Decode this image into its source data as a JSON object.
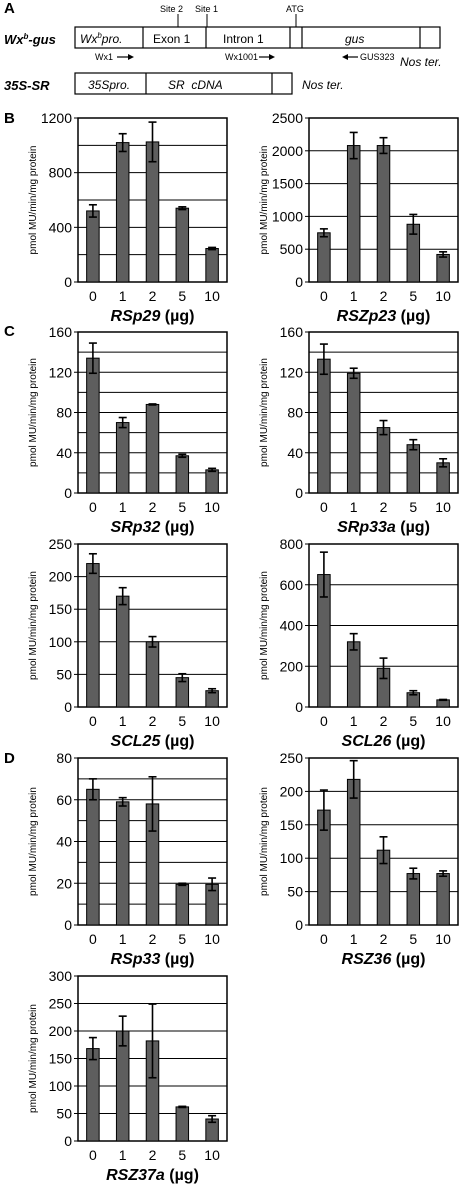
{
  "panels": {
    "a": "A",
    "b": "B",
    "c": "C",
    "d": "D"
  },
  "diagram": {
    "construct1": {
      "label_main": "Wx",
      "label_sup": "b",
      "label_tail": "-gus",
      "segments": {
        "promoter_main": "Wx",
        "promoter_sup": "b",
        "promoter_tail": "pro.",
        "exon1": "Exon 1",
        "intron1": "Intron 1",
        "gus": "gus"
      },
      "terminator": "Nos ter."
    },
    "sites": {
      "site2": "Site 2",
      "site1": "Site 1",
      "atg": "ATG"
    },
    "primers": {
      "wx1": "Wx1",
      "wx1001": "Wx1001",
      "gus323": "GUS323"
    },
    "construct2": {
      "label": "35S-SR",
      "segments": {
        "promoter": "35Spro.",
        "cdna": "SR  cDNA"
      },
      "terminator": "Nos ter."
    }
  },
  "chart_data": [
    {
      "id": "rsp29",
      "type": "bar",
      "ylabel": "pmol MU/min/mg protein",
      "xlabel_gene": "RSp29",
      "xlabel_unit": "(µg)",
      "categories": [
        "0",
        "1",
        "2",
        "5",
        "10"
      ],
      "values": [
        520,
        1020,
        1025,
        540,
        245
      ],
      "errors": [
        45,
        65,
        145,
        10,
        8
      ],
      "ylim": [
        0,
        1200
      ],
      "yticks": [
        "0",
        "400",
        "800",
        "1200"
      ],
      "gridlines": [
        0,
        200,
        400,
        600,
        800,
        1000,
        1200
      ]
    },
    {
      "id": "rszp23",
      "type": "bar",
      "ylabel": "pmol MU/min/mg protein",
      "xlabel_gene": "RSZp23",
      "xlabel_unit": "(µg)",
      "categories": [
        "0",
        "1",
        "2",
        "5",
        "10"
      ],
      "values": [
        750,
        2080,
        2080,
        880,
        420
      ],
      "errors": [
        60,
        200,
        120,
        150,
        40
      ],
      "ylim": [
        0,
        2500
      ],
      "yticks": [
        "0",
        "500",
        "1000",
        "1500",
        "2000",
        "2500"
      ],
      "gridlines": [
        0,
        500,
        1000,
        1500,
        2000,
        2500
      ]
    },
    {
      "id": "srp32",
      "type": "bar",
      "ylabel": "pmol MU/min/mg protein",
      "xlabel_gene": "SRp32",
      "xlabel_unit": "(µg)",
      "categories": [
        "0",
        "1",
        "2",
        "5",
        "10"
      ],
      "values": [
        134,
        70,
        88,
        37,
        23
      ],
      "errors": [
        15,
        5,
        0.5,
        1.5,
        1.5
      ],
      "ylim": [
        0,
        160
      ],
      "yticks": [
        "0",
        "40",
        "80",
        "120",
        "160"
      ],
      "gridlines": [
        0,
        20,
        40,
        60,
        80,
        100,
        120,
        140,
        160
      ]
    },
    {
      "id": "srp33a",
      "type": "bar",
      "ylabel": "pmol MU/min/mg protein",
      "xlabel_gene": "SRp33a",
      "xlabel_unit": "(µg)",
      "categories": [
        "0",
        "1",
        "2",
        "5",
        "10"
      ],
      "values": [
        133,
        119,
        65,
        48,
        30
      ],
      "errors": [
        15,
        5,
        7,
        5,
        4
      ],
      "ylim": [
        0,
        160
      ],
      "yticks": [
        "0",
        "40",
        "80",
        "120",
        "160"
      ],
      "gridlines": [
        0,
        20,
        40,
        60,
        80,
        100,
        120,
        140,
        160
      ]
    },
    {
      "id": "scl25",
      "type": "bar",
      "ylabel": "pmol MU/min/mg protein",
      "xlabel_gene": "SCL25",
      "xlabel_unit": "(µg)",
      "categories": [
        "0",
        "1",
        "2",
        "5",
        "10"
      ],
      "values": [
        220,
        170,
        100,
        45,
        25
      ],
      "errors": [
        15,
        13,
        8,
        6,
        3
      ],
      "ylim": [
        0,
        250
      ],
      "yticks": [
        "0",
        "50",
        "100",
        "150",
        "200",
        "250"
      ],
      "gridlines": [
        0,
        50,
        100,
        150,
        200,
        250
      ]
    },
    {
      "id": "scl26",
      "type": "bar",
      "ylabel": "pmol MU/min/mg protein",
      "xlabel_gene": "SCL26",
      "xlabel_unit": "(µg)",
      "categories": [
        "0",
        "1",
        "2",
        "5",
        "10"
      ],
      "values": [
        650,
        320,
        190,
        70,
        35
      ],
      "errors": [
        110,
        40,
        50,
        10,
        2
      ],
      "ylim": [
        0,
        800
      ],
      "yticks": [
        "0",
        "200",
        "400",
        "600",
        "800"
      ],
      "gridlines": [
        0,
        200,
        400,
        600,
        800
      ]
    },
    {
      "id": "rsp33",
      "type": "bar",
      "ylabel": "pmol MU/min/mg protein",
      "xlabel_gene": "RSp33",
      "xlabel_unit": "(µg)",
      "categories": [
        "0",
        "1",
        "2",
        "5",
        "10"
      ],
      "values": [
        65,
        59,
        58,
        19.5,
        19.5
      ],
      "errors": [
        5,
        2,
        13,
        0.5,
        3
      ],
      "ylim": [
        0,
        80
      ],
      "yticks": [
        "0",
        "20",
        "40",
        "60",
        "80"
      ],
      "gridlines": [
        0,
        10,
        20,
        30,
        40,
        50,
        60,
        70,
        80
      ]
    },
    {
      "id": "rsz36",
      "type": "bar",
      "ylabel": "pmol MU/min/mg protein",
      "xlabel_gene": "RSZ36",
      "xlabel_unit": "(µg)",
      "categories": [
        "0",
        "1",
        "2",
        "5",
        "10"
      ],
      "values": [
        172,
        218,
        112,
        77,
        77
      ],
      "errors": [
        30,
        28,
        20,
        8,
        4
      ],
      "ylim": [
        0,
        250
      ],
      "yticks": [
        "0",
        "50",
        "100",
        "150",
        "200",
        "250"
      ],
      "gridlines": [
        0,
        50,
        100,
        150,
        200,
        250
      ]
    },
    {
      "id": "rsz37a",
      "type": "bar",
      "ylabel": "pmol MU/min/mg protein",
      "xlabel_gene": "RSZ37a",
      "xlabel_unit": "(µg)",
      "categories": [
        "0",
        "1",
        "2",
        "5",
        "10"
      ],
      "values": [
        168,
        200,
        182,
        62,
        40
      ],
      "errors": [
        20,
        27,
        67,
        1,
        6
      ],
      "ylim": [
        0,
        300
      ],
      "yticks": [
        "0",
        "50",
        "100",
        "150",
        "200",
        "250",
        "300"
      ],
      "gridlines": [
        0,
        50,
        100,
        150,
        200,
        250,
        300
      ]
    }
  ]
}
